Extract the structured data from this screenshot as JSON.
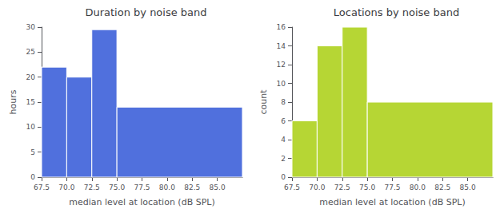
{
  "chart_data": [
    {
      "type": "histogram",
      "title": "Duration by noise band",
      "xlabel": "median level at location (dB SPL)",
      "ylabel": "hours",
      "bins": [
        67.5,
        70.0,
        72.5,
        75.0,
        87.5
      ],
      "values": [
        22,
        20,
        29.5,
        14
      ],
      "xlim": [
        67.5,
        87.5
      ],
      "xticks": [
        67.5,
        {
          "value": 70,
          "label": "70.0"
        },
        72.5,
        {
          "value": 75,
          "label": "75.0"
        },
        77.5,
        {
          "value": 80,
          "label": "80.0"
        },
        82.5,
        {
          "value": 85,
          "label": "85.0"
        }
      ],
      "ylim": [
        0,
        30
      ],
      "yticks": [
        0,
        5,
        10,
        15,
        20,
        25,
        30
      ],
      "grid": false
    },
    {
      "type": "histogram",
      "title": "Locations by noise band",
      "xlabel": "median level at location (dB SPL)",
      "ylabel": "count",
      "bins": [
        67.5,
        70.0,
        72.5,
        75.0,
        87.5
      ],
      "values": [
        6,
        14,
        16,
        8
      ],
      "xlim": [
        67.5,
        87.5
      ],
      "xticks": [
        67.5,
        {
          "value": 70,
          "label": "70.0"
        },
        72.5,
        {
          "value": 75,
          "label": "75.0"
        },
        77.5,
        {
          "value": 80,
          "label": "80.0"
        },
        82.5,
        {
          "value": 85,
          "label": "85.0"
        }
      ],
      "ylim": [
        0,
        16
      ],
      "yticks": [
        0,
        2,
        4,
        6,
        8,
        10,
        12,
        14,
        16
      ],
      "grid": false
    }
  ]
}
